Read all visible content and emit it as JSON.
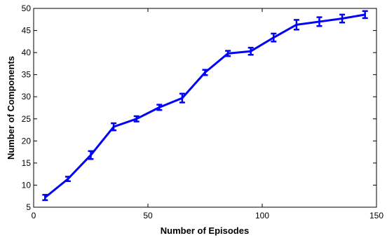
{
  "chart_data": {
    "type": "line",
    "title": "",
    "xlabel": "Number of Episodes",
    "ylabel": "Number of Components",
    "xlim": [
      0,
      150
    ],
    "ylim": [
      5,
      50
    ],
    "xticks": [
      0,
      50,
      100,
      150
    ],
    "yticks": [
      5,
      10,
      15,
      20,
      25,
      30,
      35,
      40,
      45,
      50
    ],
    "grid": false,
    "legend": "none",
    "series": [
      {
        "color": "#0000ff",
        "x": [
          5,
          15,
          25,
          35,
          45,
          55,
          65,
          75,
          85,
          95,
          105,
          115,
          125,
          135,
          145
        ],
        "y": [
          7.2,
          11.4,
          16.8,
          23.2,
          25.0,
          27.6,
          29.7,
          35.5,
          39.8,
          40.3,
          43.4,
          46.3,
          47.0,
          47.7,
          48.6
        ],
        "err": [
          0.6,
          0.5,
          0.9,
          0.8,
          0.6,
          0.6,
          1.0,
          0.6,
          0.6,
          0.8,
          0.9,
          1.1,
          1.0,
          0.9,
          0.8
        ]
      }
    ]
  }
}
